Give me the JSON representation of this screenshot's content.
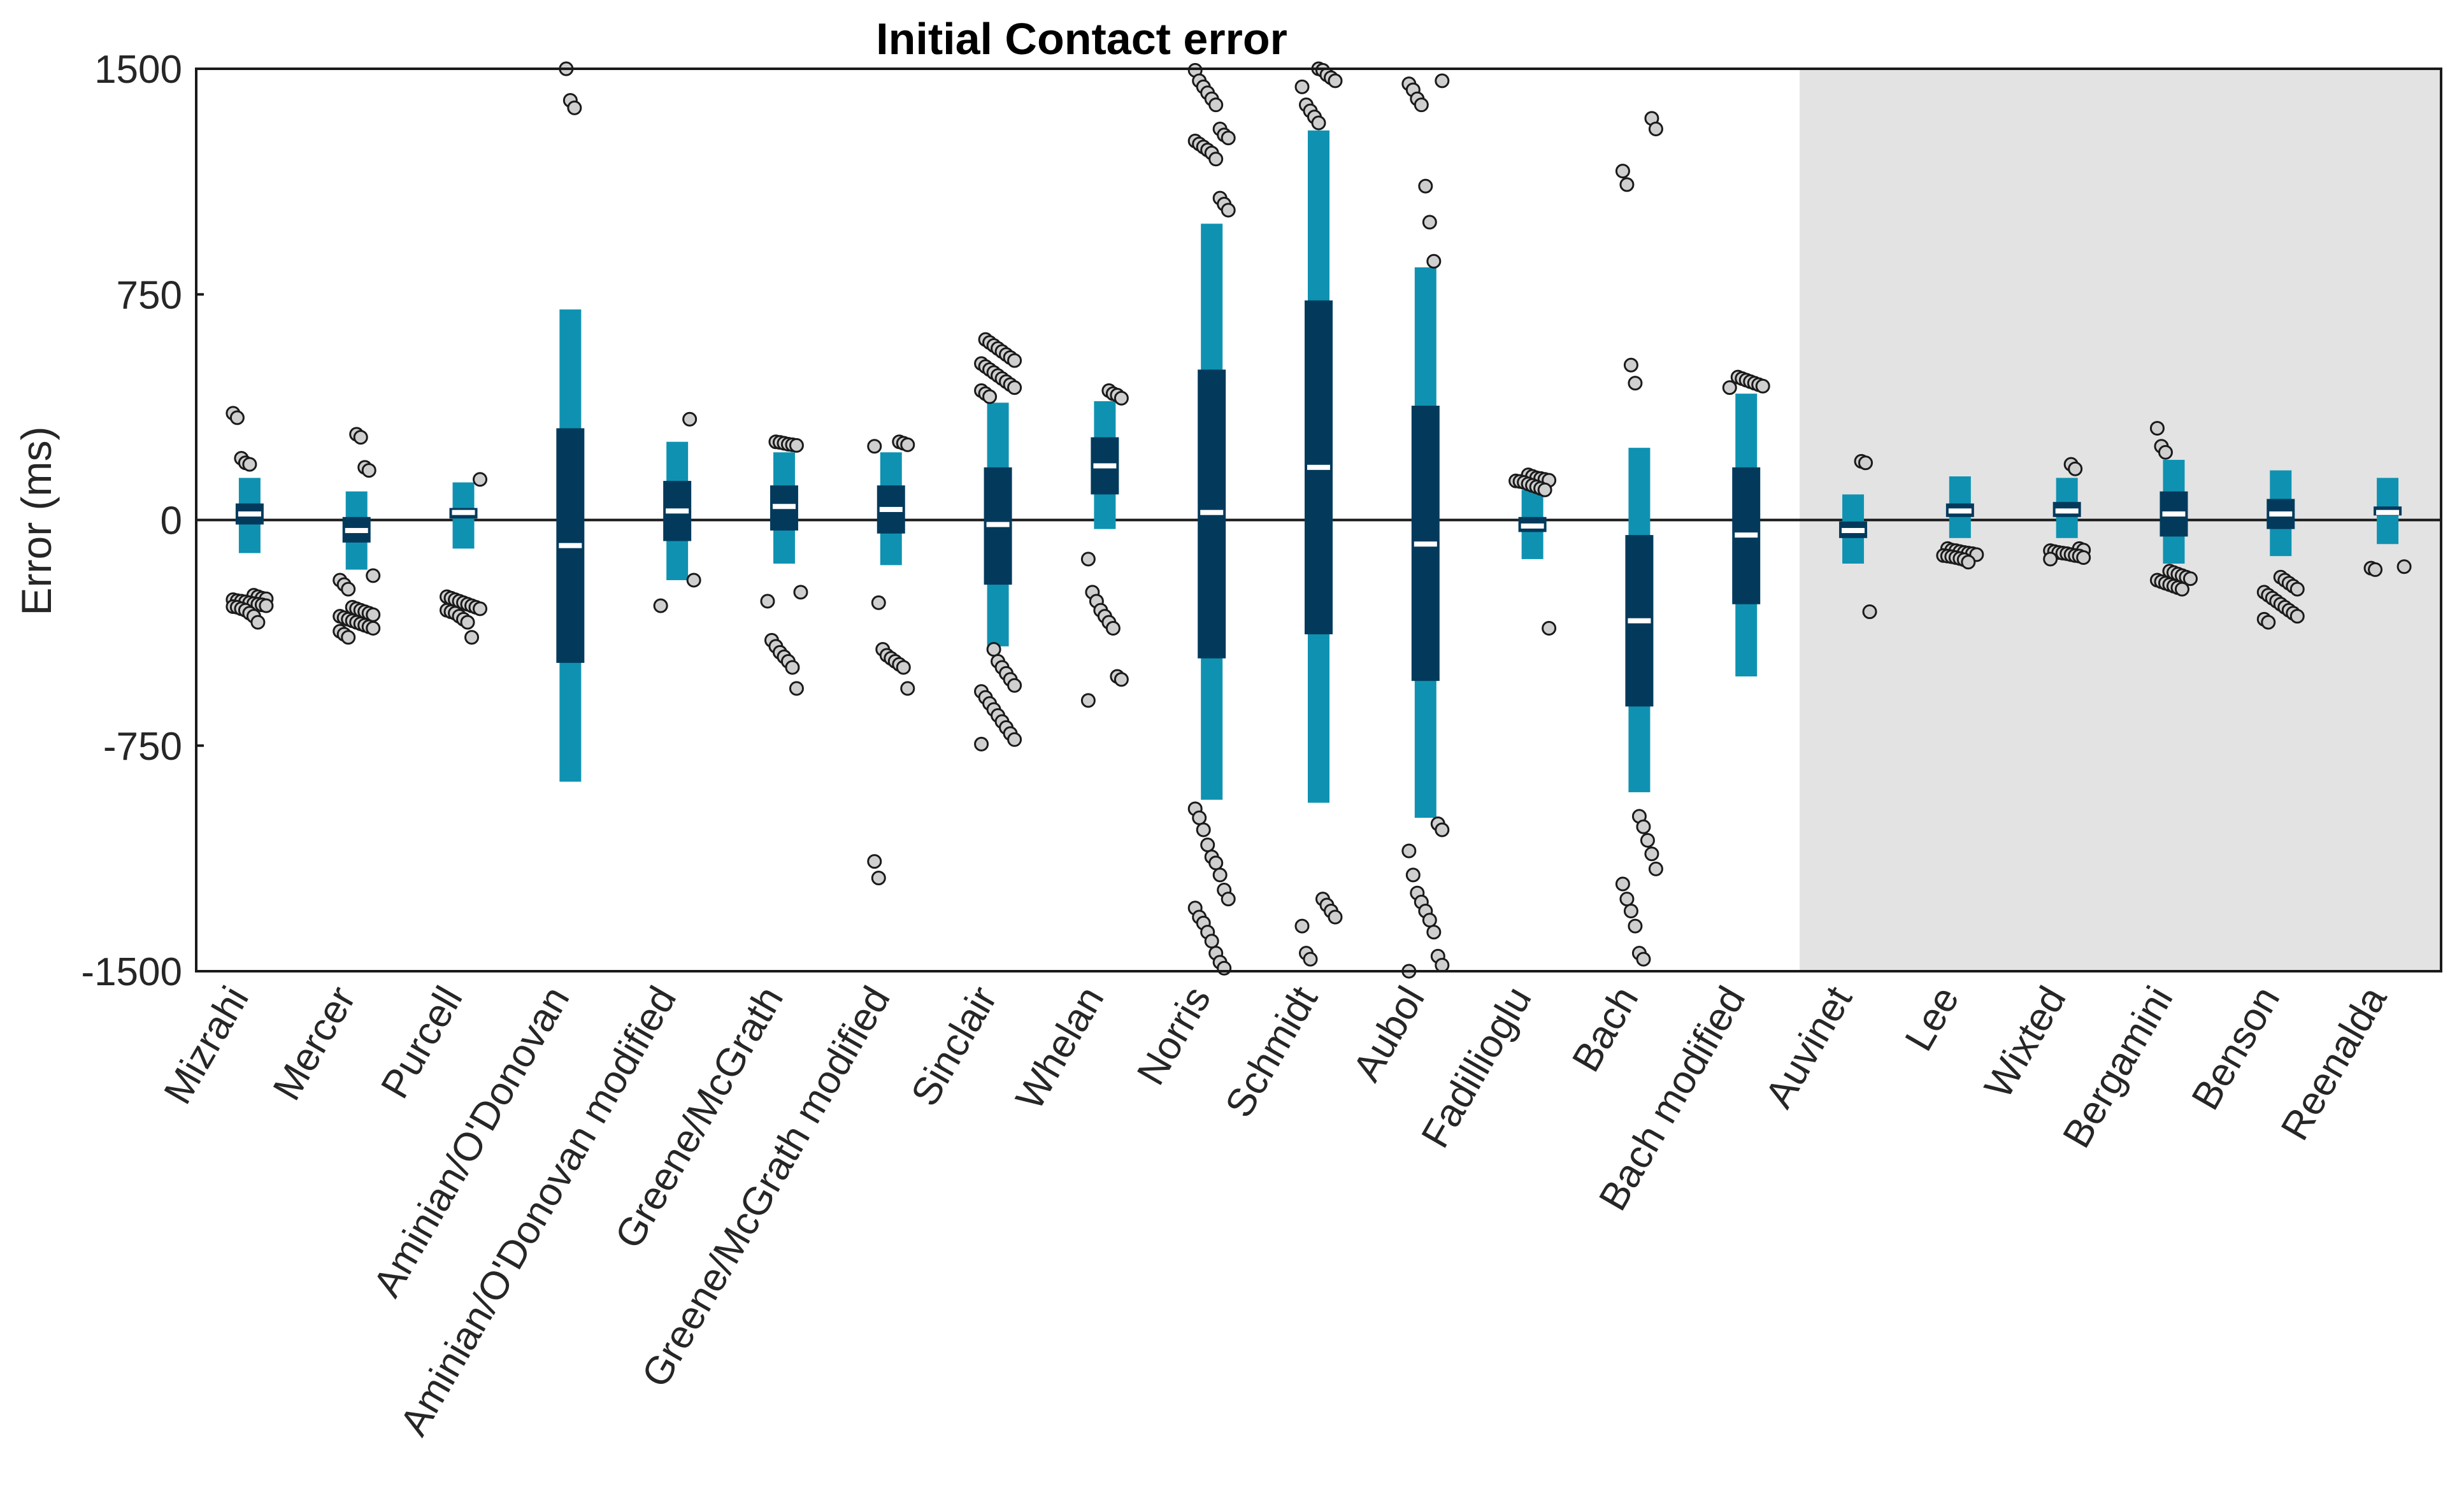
{
  "chart_data": {
    "type": "boxplot",
    "title": "Initial Contact error",
    "xlabel": "",
    "ylabel": "Error (ms)",
    "ylim": [
      -1500,
      1500
    ],
    "yticks": [
      1500,
      750,
      0,
      -750,
      -1500
    ],
    "ytick_labels": [
      "1500",
      "750",
      "0",
      "-750",
      "-1500"
    ],
    "zero_line": true,
    "shaded_region": {
      "from_category": "Auvinet",
      "to_category": "Reenalda",
      "color": "#e3e3e3"
    },
    "colors": {
      "outer_bar": "#0f92b2",
      "inner_box": "#033a5c",
      "median": "#ffffff",
      "outlier_fill": "#cfcfcf",
      "outlier_stroke": "#1a1a1a",
      "axis": "#1a1a1a"
    },
    "categories": [
      "Mizrahi",
      "Mercer",
      "Purcell",
      "Aminian/O'Donovan",
      "Aminian/O'Donovan modified",
      "Greene/McGrath",
      "Greene/McGrath modified",
      "Sinclair",
      "Whelan",
      "Norris",
      "Schmidt",
      "Aubol",
      "Fadillioglu",
      "Bach",
      "Bach modified",
      "Auvinet",
      "Lee",
      "Wixted",
      "Bergamini",
      "Benson",
      "Reenalda"
    ],
    "series": [
      {
        "name": "Mizrahi",
        "whisker_low": -110,
        "whisker_high": 140,
        "q1": -15,
        "q3": 55,
        "median": 20,
        "outliers": [
          355,
          340,
          205,
          190,
          185,
          -250,
          -255,
          -260,
          -262,
          -265,
          -268,
          -270,
          -272,
          -275,
          -278,
          -280,
          -282,
          -285,
          -288,
          -290,
          -295,
          -300,
          -310,
          -320,
          -340
        ]
      },
      {
        "name": "Mercer",
        "whisker_low": -165,
        "whisker_high": 95,
        "q1": -75,
        "q3": 10,
        "median": -35,
        "outliers": [
          285,
          275,
          175,
          165,
          -185,
          -200,
          -215,
          -230,
          -290,
          -295,
          -300,
          -305,
          -310,
          -315,
          -320,
          -325,
          -330,
          -335,
          -340,
          -345,
          -350,
          -355,
          -360,
          -370,
          -380,
          -390
        ]
      },
      {
        "name": "Purcell",
        "whisker_low": -95,
        "whisker_high": 125,
        "q1": 5,
        "q3": 40,
        "median": 25,
        "outliers": [
          135,
          -255,
          -260,
          -265,
          -270,
          -275,
          -280,
          -285,
          -290,
          -295,
          -300,
          -305,
          -310,
          -320,
          -330,
          -340,
          -390
        ]
      },
      {
        "name": "Aminian/O'Donovan",
        "whisker_low": -870,
        "whisker_high": 700,
        "q1": -475,
        "q3": 305,
        "median": -85,
        "outliers": [
          1500,
          1395,
          1370
        ]
      },
      {
        "name": "Aminian/O'Donovan modified",
        "whisker_low": -200,
        "whisker_high": 260,
        "q1": -70,
        "q3": 130,
        "median": 30,
        "outliers": [
          335,
          -200,
          -285
        ]
      },
      {
        "name": "Greene/McGrath",
        "whisker_low": -145,
        "whisker_high": 225,
        "q1": -35,
        "q3": 115,
        "median": 45,
        "outliers": [
          260,
          258,
          255,
          252,
          250,
          248,
          -240,
          -270,
          -400,
          -420,
          -440,
          -455,
          -470,
          -490,
          -560
        ]
      },
      {
        "name": "Greene/McGrath modified",
        "whisker_low": -150,
        "whisker_high": 225,
        "q1": -45,
        "q3": 115,
        "median": 35,
        "outliers": [
          260,
          255,
          250,
          245,
          -275,
          -430,
          -450,
          -460,
          -470,
          -480,
          -490,
          -560,
          -1135,
          -1190
        ]
      },
      {
        "name": "Sinclair",
        "whisker_low": -420,
        "whisker_high": 390,
        "q1": -215,
        "q3": 175,
        "median": -15,
        "outliers": [
          600,
          590,
          580,
          570,
          560,
          550,
          540,
          530,
          520,
          510,
          500,
          490,
          480,
          470,
          460,
          450,
          440,
          430,
          420,
          410,
          -430,
          -470,
          -490,
          -510,
          -530,
          -550,
          -570,
          -590,
          -610,
          -630,
          -650,
          -670,
          -690,
          -710,
          -730,
          -745
        ]
      },
      {
        "name": "Whelan",
        "whisker_low": -30,
        "whisker_high": 395,
        "q1": 85,
        "q3": 275,
        "median": 180,
        "outliers": [
          430,
          420,
          415,
          405,
          -130,
          -240,
          -270,
          -300,
          -320,
          -340,
          -360,
          -520,
          -530,
          -600
        ]
      },
      {
        "name": "Norris",
        "whisker_low": -930,
        "whisker_high": 985,
        "q1": -460,
        "q3": 500,
        "median": 25,
        "outliers": [
          1495,
          1460,
          1440,
          1420,
          1400,
          1380,
          1300,
          1280,
          1270,
          1260,
          1250,
          1240,
          1230,
          1220,
          1200,
          1070,
          1050,
          1030,
          -960,
          -990,
          -1030,
          -1080,
          -1120,
          -1140,
          -1180,
          -1230,
          -1260,
          -1290,
          -1320,
          -1340,
          -1370,
          -1400,
          -1440,
          -1470,
          -1490
        ]
      },
      {
        "name": "Schmidt",
        "whisker_low": -940,
        "whisker_high": 1295,
        "q1": -380,
        "q3": 730,
        "median": 175,
        "outliers": [
          1500,
          1495,
          1480,
          1470,
          1460,
          1440,
          1380,
          1360,
          1340,
          1320,
          -1260,
          -1280,
          -1300,
          -1320,
          -1350,
          -1440,
          -1460
        ]
      },
      {
        "name": "Aubol",
        "whisker_low": -990,
        "whisker_high": 840,
        "q1": -535,
        "q3": 380,
        "median": -80,
        "outliers": [
          1460,
          1450,
          1430,
          1400,
          1380,
          1110,
          990,
          860,
          -1010,
          -1030,
          -1100,
          -1180,
          -1240,
          -1270,
          -1300,
          -1330,
          -1370,
          -1450,
          -1480,
          -1500
        ]
      },
      {
        "name": "Fadillioglu",
        "whisker_low": -130,
        "whisker_high": 100,
        "q1": -40,
        "q3": 10,
        "median": -20,
        "outliers": [
          150,
          145,
          140,
          138,
          135,
          132,
          130,
          128,
          125,
          120,
          115,
          110,
          105,
          100,
          -360
        ]
      },
      {
        "name": "Bach",
        "whisker_low": -905,
        "whisker_high": 240,
        "q1": -620,
        "q3": -50,
        "median": -335,
        "outliers": [
          1335,
          1300,
          1160,
          1115,
          515,
          455,
          -985,
          -1020,
          -1065,
          -1110,
          -1160,
          -1210,
          -1260,
          -1300,
          -1350,
          -1440,
          -1460
        ]
      },
      {
        "name": "Bach modified",
        "whisker_low": -520,
        "whisker_high": 420,
        "q1": -280,
        "q3": 175,
        "median": -50,
        "outliers": [
          475,
          470,
          465,
          460,
          455,
          450,
          445,
          440
        ]
      },
      {
        "name": "Auvinet",
        "whisker_low": -145,
        "whisker_high": 85,
        "q1": -60,
        "q3": -5,
        "median": -35,
        "outliers": [
          195,
          190,
          -305
        ]
      },
      {
        "name": "Lee",
        "whisker_low": -60,
        "whisker_high": 145,
        "q1": 10,
        "q3": 55,
        "median": 30,
        "outliers": [
          -95,
          -100,
          -102,
          -105,
          -108,
          -110,
          -112,
          -115,
          -118,
          -120,
          -122,
          -125,
          -128,
          -132,
          -140
        ]
      },
      {
        "name": "Wixted",
        "whisker_low": -60,
        "whisker_high": 140,
        "q1": 10,
        "q3": 60,
        "median": 30,
        "outliers": [
          185,
          170,
          -95,
          -100,
          -102,
          -105,
          -108,
          -110,
          -112,
          -115,
          -118,
          -120,
          -125,
          -130
        ]
      },
      {
        "name": "Bergamini",
        "whisker_low": -145,
        "whisker_high": 200,
        "q1": -55,
        "q3": 95,
        "median": 20,
        "outliers": [
          305,
          245,
          225,
          -170,
          -175,
          -180,
          -185,
          -190,
          -195,
          -200,
          -205,
          -210,
          -215,
          -220,
          -225,
          -230
        ]
      },
      {
        "name": "Benson",
        "whisker_low": -120,
        "whisker_high": 165,
        "q1": -30,
        "q3": 70,
        "median": 20,
        "outliers": [
          -190,
          -200,
          -210,
          -220,
          -230,
          -240,
          -250,
          -260,
          -270,
          -280,
          -290,
          -300,
          -310,
          -320,
          -330,
          -340
        ]
      },
      {
        "name": "Reenalda",
        "whisker_low": -80,
        "whisker_high": 140,
        "q1": 15,
        "q3": 45,
        "median": 25,
        "outliers": [
          -155,
          -160,
          -165
        ]
      }
    ]
  }
}
